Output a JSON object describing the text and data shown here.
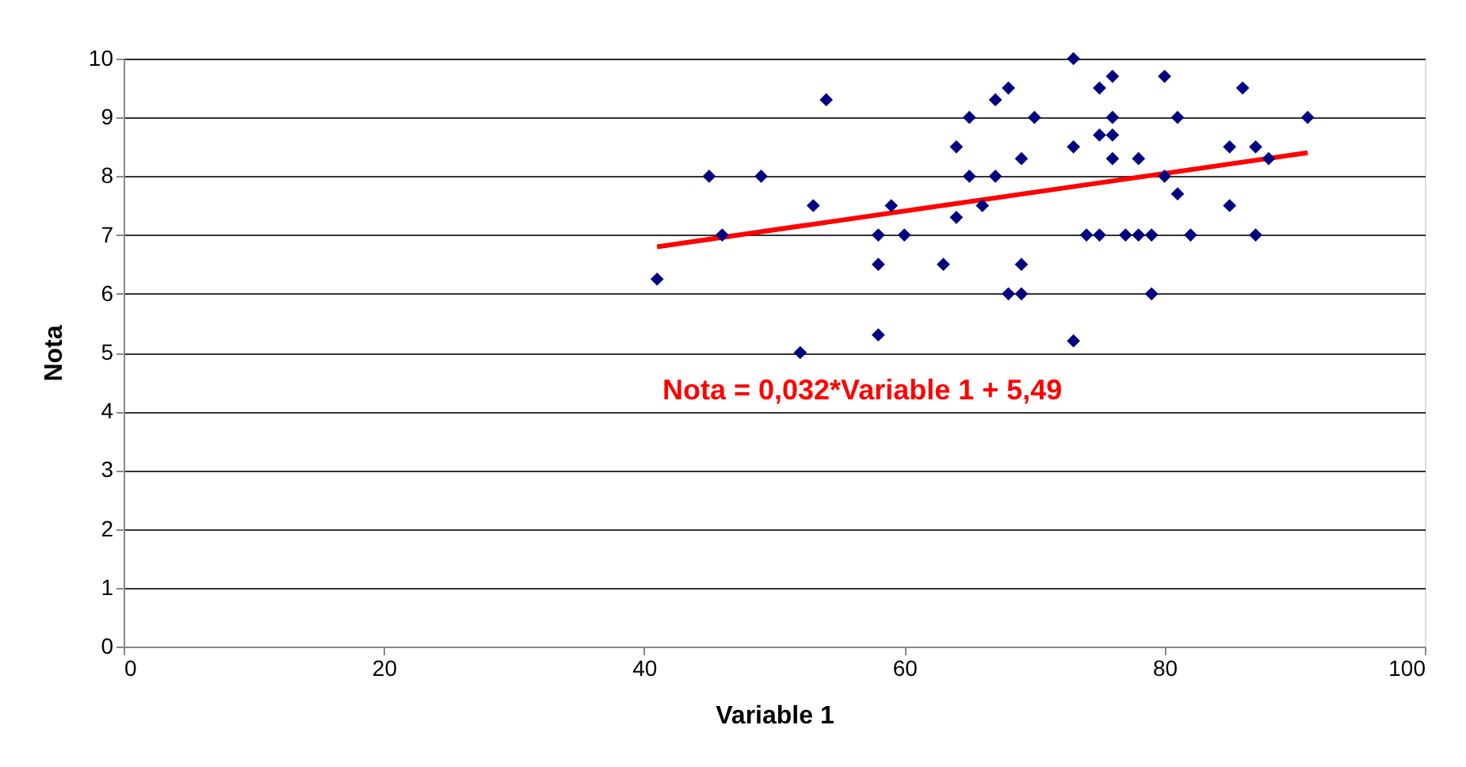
{
  "chart_data": {
    "type": "scatter",
    "xlabel": "Variable 1",
    "ylabel": "Nota",
    "xlim": [
      0,
      100
    ],
    "xticks": [
      0,
      20,
      40,
      60,
      80,
      100
    ],
    "ylim": [
      0,
      10
    ],
    "yticks": [
      0,
      1,
      2,
      3,
      4,
      5,
      6,
      7,
      8,
      9,
      10
    ],
    "grid": "y",
    "marker": "diamond",
    "annotations": [
      "Nota = 0,032*Variable 1 + 5,49"
    ],
    "series": [
      {
        "color": "#000080",
        "x": [
          41,
          45,
          46,
          49,
          52,
          53,
          54,
          58,
          58,
          58,
          59,
          60,
          63,
          64,
          64,
          65,
          65,
          66,
          67,
          67,
          68,
          68,
          69,
          69,
          69,
          70,
          73,
          73,
          73,
          74,
          75,
          75,
          75,
          76,
          76,
          76,
          76,
          77,
          78,
          78,
          79,
          79,
          80,
          80,
          81,
          81,
          82,
          85,
          85,
          86,
          87,
          87,
          88,
          91
        ],
        "values": [
          6.25,
          8,
          7,
          8,
          5,
          7.5,
          9.3,
          7,
          6.5,
          5.3,
          7.5,
          7,
          6.5,
          8.5,
          7.3,
          9,
          8,
          7.5,
          9.3,
          8,
          9.5,
          6,
          8.3,
          6.5,
          6,
          9,
          10,
          8.5,
          5.2,
          7,
          9.5,
          8.7,
          7,
          9.7,
          9,
          8.7,
          8.3,
          7,
          8.3,
          7,
          7,
          6,
          9.7,
          8,
          9,
          7.7,
          7,
          8.5,
          7.5,
          9.5,
          8.5,
          7,
          8.3,
          9
        ]
      },
      {
        "type": "line",
        "color": "#ff0000",
        "x": [
          41,
          91
        ],
        "values": [
          6.8,
          8.4
        ],
        "marker": "none",
        "line_style": "solid"
      }
    ]
  }
}
